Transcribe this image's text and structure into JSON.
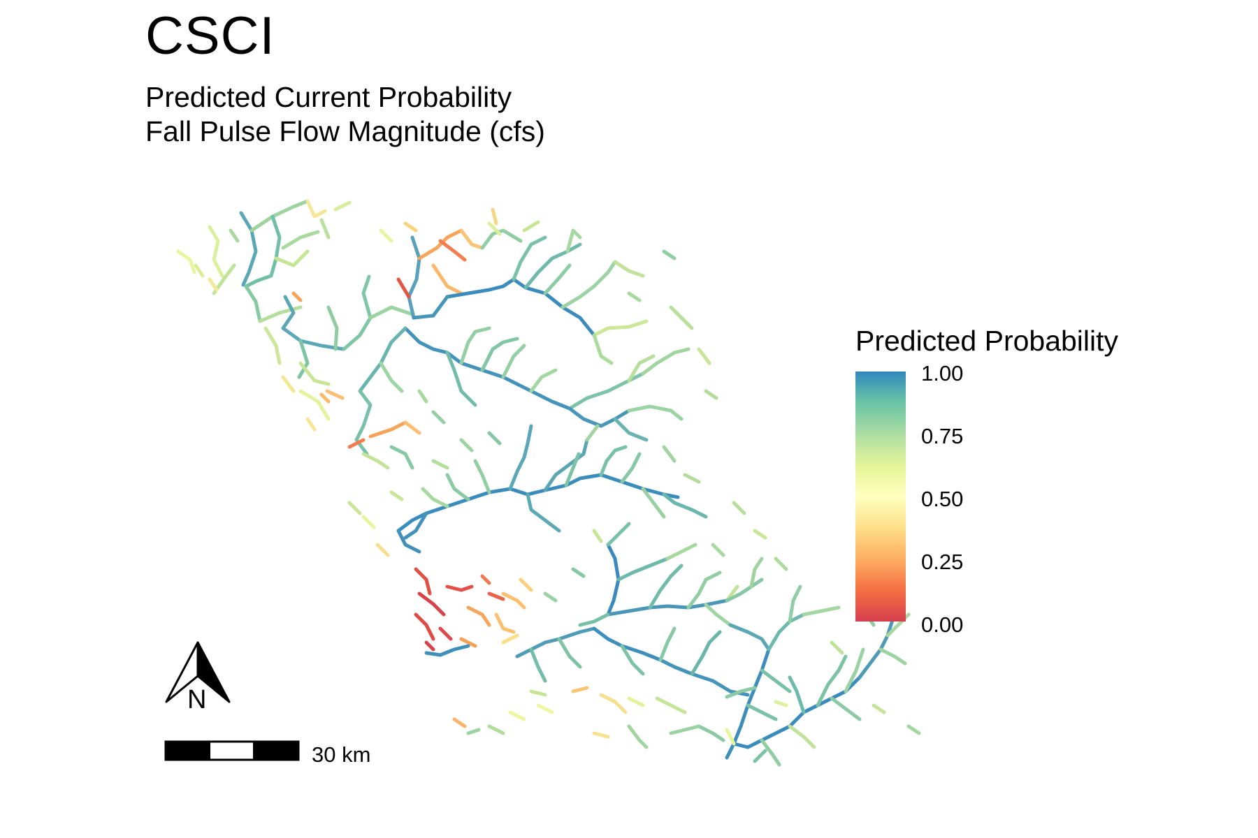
{
  "title": "CSCI",
  "subtitle_line1": "Predicted Current Probability",
  "subtitle_line2": "Fall Pulse Flow Magnitude (cfs)",
  "legend": {
    "title": "Predicted Probability",
    "ticks": [
      "1.00",
      "0.75",
      "0.50",
      "0.25",
      "0.00"
    ],
    "colors": [
      "#3288bd",
      "#66c2a5",
      "#abdda4",
      "#e6f598",
      "#ffffbf",
      "#fee08b",
      "#fdae61",
      "#f46d43",
      "#d53e4f"
    ]
  },
  "scale_bar": {
    "label": "30 km"
  },
  "north_arrow": {
    "label": "N",
    "icon": "north-arrow-icon"
  }
}
